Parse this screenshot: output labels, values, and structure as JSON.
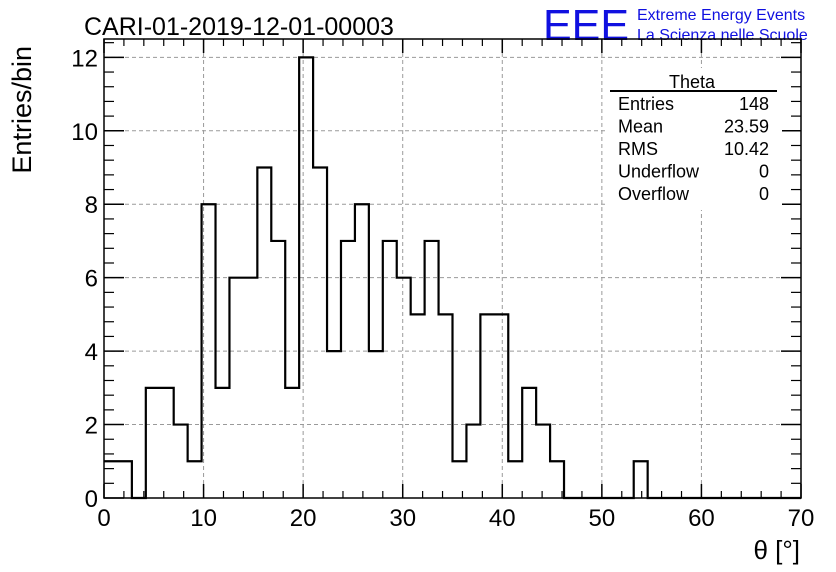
{
  "chart_data": {
    "type": "histogram",
    "title": "CARI-01-2019-12-01-00003",
    "xlabel": "θ [°]",
    "ylabel": "Entries/bin",
    "xlim": [
      0,
      70
    ],
    "ylim": [
      0,
      12.5
    ],
    "grid": true,
    "bin_width": 1.4,
    "x_ticks": [
      0,
      10,
      20,
      30,
      40,
      50,
      60,
      70
    ],
    "y_ticks": [
      0,
      2,
      4,
      6,
      8,
      10,
      12
    ],
    "bin_edges_start": 0,
    "counts": [
      1,
      1,
      0,
      3,
      3,
      2,
      1,
      8,
      3,
      6,
      6,
      9,
      7,
      3,
      12,
      9,
      4,
      7,
      8,
      4,
      7,
      6,
      5,
      7,
      5,
      1,
      2,
      5,
      5,
      1,
      3,
      2,
      1,
      0,
      0,
      0,
      0,
      0,
      1,
      0,
      0,
      0,
      0,
      0,
      0,
      0,
      0,
      0,
      0,
      0
    ]
  },
  "stats": {
    "title": "Theta",
    "rows": [
      {
        "label": "Entries",
        "value": "148"
      },
      {
        "label": "Mean",
        "value": "23.59"
      },
      {
        "label": "RMS",
        "value": "10.42"
      },
      {
        "label": "Underflow",
        "value": "0"
      },
      {
        "label": "Overflow",
        "value": "0"
      }
    ]
  },
  "logo": {
    "text": "EEE",
    "line1": "Extreme Energy Events",
    "line2": "La Scienza nelle Scuole",
    "color": "#1010e0"
  }
}
